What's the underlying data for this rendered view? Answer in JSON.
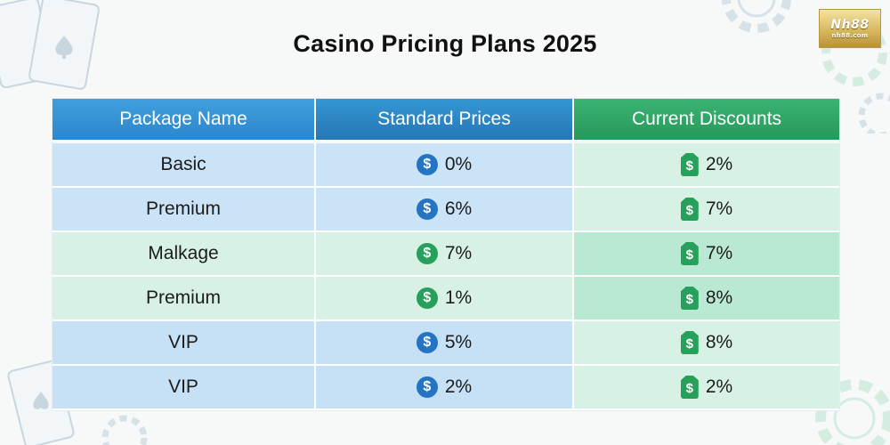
{
  "title": "Casino Pricing Plans 2025",
  "logo": {
    "line1": "Nh88",
    "line2": "nh88.com"
  },
  "table": {
    "headers": [
      "Package Name",
      "Standard Prices",
      "Current Discounts"
    ],
    "rows": [
      {
        "name": "Basic",
        "standard": "0%",
        "standard_icon": "dollar-coin-blue",
        "discount": "2%",
        "discount_icon": "dollar-tag-green",
        "color": "blue"
      },
      {
        "name": "Premium",
        "standard": "6%",
        "standard_icon": "dollar-coin-blue",
        "discount": "7%",
        "discount_icon": "dollar-tag-green",
        "color": "blue"
      },
      {
        "name": "Malkage",
        "standard": "7%",
        "standard_icon": "dollar-coin-green",
        "discount": "7%",
        "discount_icon": "dollar-tag-green",
        "color": "green"
      },
      {
        "name": "Premium",
        "standard": "1%",
        "standard_icon": "dollar-coin-green",
        "discount": "8%",
        "discount_icon": "dollar-tag-green",
        "color": "green"
      },
      {
        "name": "VIP",
        "standard": "5%",
        "standard_icon": "dollar-coin-blue",
        "discount": "8%",
        "discount_icon": "dollar-tag-green",
        "color": "blue"
      },
      {
        "name": "VIP",
        "standard": "2%",
        "standard_icon": "dollar-coin-blue",
        "discount": "2%",
        "discount_icon": "dollar-tag-green",
        "color": "blue"
      }
    ]
  },
  "colors": {
    "header_blue": "#2d86cb",
    "header_green": "#28985a",
    "row_blue": "#cbe3f7",
    "row_green": "#d7f1e4",
    "icon_blue": "#2574c4",
    "icon_green": "#26a05b"
  }
}
